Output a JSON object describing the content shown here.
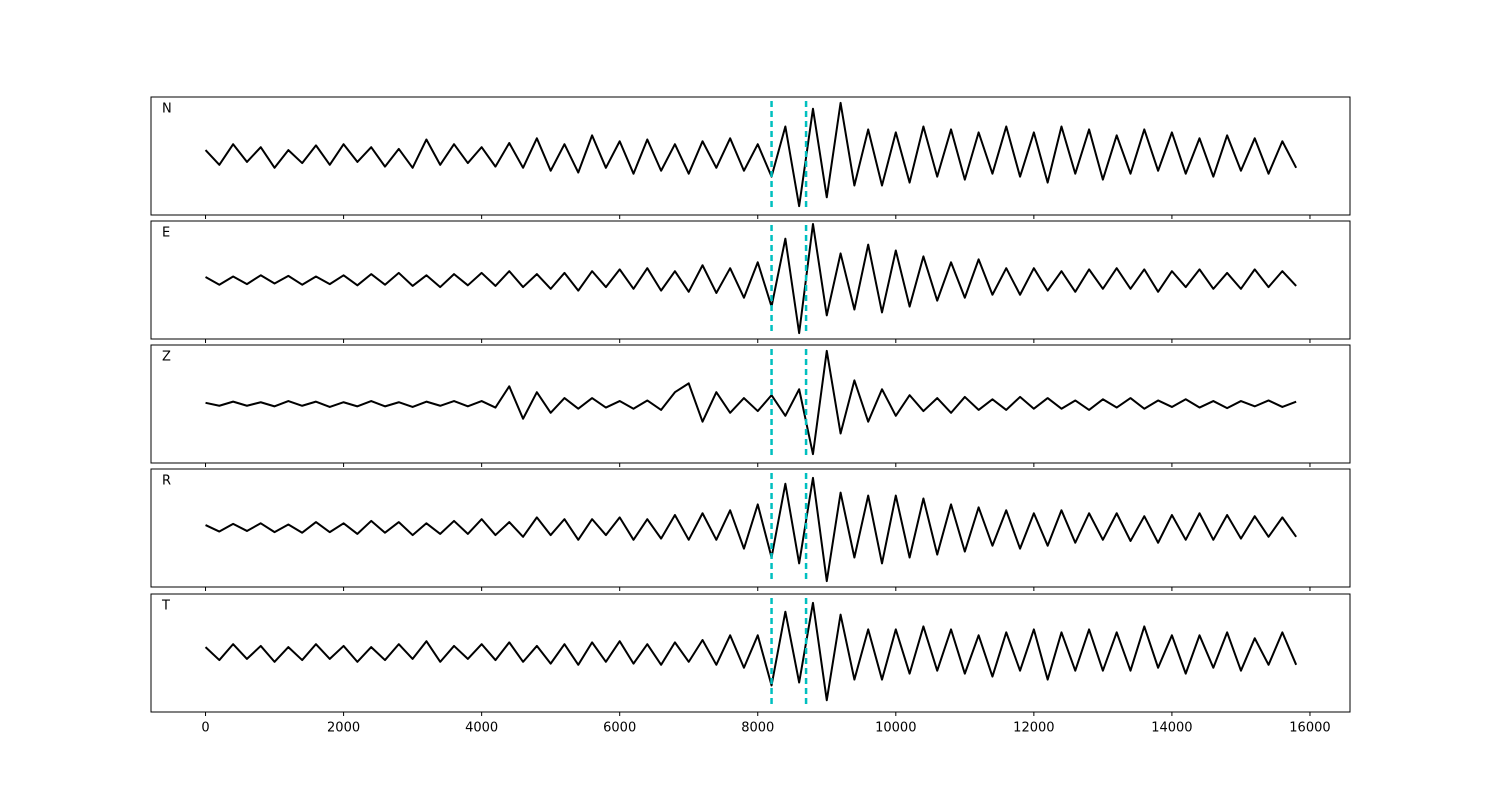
{
  "chart_data": {
    "type": "line",
    "x": [
      0,
      200,
      400,
      600,
      800,
      1000,
      1200,
      1400,
      1600,
      1800,
      2000,
      2200,
      2400,
      2600,
      2800,
      3000,
      3200,
      3400,
      3600,
      3800,
      4000,
      4200,
      4400,
      4600,
      4800,
      5000,
      5200,
      5400,
      5600,
      5800,
      6000,
      6200,
      6400,
      6600,
      6800,
      7000,
      7200,
      7400,
      7600,
      7800,
      8000,
      8200,
      8400,
      8600,
      8800,
      9000,
      9200,
      9400,
      9600,
      9800,
      10000,
      10200,
      10400,
      10600,
      10800,
      11000,
      11200,
      11400,
      11600,
      11800,
      12000,
      12200,
      12400,
      12600,
      12800,
      13000,
      13200,
      13400,
      13600,
      13800,
      14000,
      14200,
      14400,
      14600,
      14800,
      15000,
      15200,
      15400,
      15600,
      15800
    ],
    "series": [
      {
        "name": "N",
        "color": "#000000",
        "values": [
          0.1,
          -0.15,
          0.2,
          -0.1,
          0.15,
          -0.2,
          0.1,
          -0.12,
          0.18,
          -0.15,
          0.2,
          -0.1,
          0.15,
          -0.18,
          0.12,
          -0.2,
          0.28,
          -0.15,
          0.2,
          -0.12,
          0.15,
          -0.18,
          0.22,
          -0.2,
          0.3,
          -0.25,
          0.2,
          -0.28,
          0.35,
          -0.2,
          0.25,
          -0.3,
          0.28,
          -0.25,
          0.2,
          -0.3,
          0.25,
          -0.2,
          0.3,
          -0.25,
          0.2,
          -0.35,
          0.5,
          -0.85,
          0.8,
          -0.7,
          0.9,
          -0.5,
          0.45,
          -0.5,
          0.4,
          -0.45,
          0.5,
          -0.35,
          0.45,
          -0.4,
          0.4,
          -0.3,
          0.5,
          -0.35,
          0.4,
          -0.45,
          0.5,
          -0.3,
          0.45,
          -0.4,
          0.35,
          -0.3,
          0.45,
          -0.25,
          0.4,
          -0.3,
          0.3,
          -0.35,
          0.35,
          -0.25,
          0.3,
          -0.3,
          0.25,
          -0.2
        ]
      },
      {
        "name": "E",
        "color": "#000000",
        "values": [
          0.05,
          -0.08,
          0.06,
          -0.07,
          0.08,
          -0.06,
          0.07,
          -0.08,
          0.06,
          -0.07,
          0.08,
          -0.09,
          0.1,
          -0.08,
          0.12,
          -0.1,
          0.08,
          -0.12,
          0.1,
          -0.09,
          0.12,
          -0.1,
          0.15,
          -0.12,
          0.1,
          -0.15,
          0.12,
          -0.18,
          0.15,
          -0.12,
          0.18,
          -0.15,
          0.2,
          -0.18,
          0.15,
          -0.2,
          0.25,
          -0.22,
          0.2,
          -0.3,
          0.3,
          -0.45,
          0.7,
          -0.9,
          0.95,
          -0.6,
          0.45,
          -0.5,
          0.6,
          -0.55,
          0.5,
          -0.45,
          0.4,
          -0.35,
          0.3,
          -0.3,
          0.35,
          -0.25,
          0.2,
          -0.25,
          0.2,
          -0.18,
          0.15,
          -0.2,
          0.18,
          -0.15,
          0.2,
          -0.15,
          0.18,
          -0.2,
          0.15,
          -0.12,
          0.18,
          -0.15,
          0.12,
          -0.15,
          0.18,
          -0.12,
          0.15,
          -0.1
        ]
      },
      {
        "name": "Z",
        "color": "#000000",
        "values": [
          0.02,
          -0.03,
          0.04,
          -0.03,
          0.03,
          -0.04,
          0.05,
          -0.03,
          0.04,
          -0.05,
          0.03,
          -0.04,
          0.05,
          -0.04,
          0.03,
          -0.05,
          0.04,
          -0.03,
          0.05,
          -0.04,
          0.05,
          -0.06,
          0.3,
          -0.25,
          0.2,
          -0.15,
          0.1,
          -0.08,
          0.1,
          -0.06,
          0.05,
          -0.08,
          0.06,
          -0.1,
          0.2,
          0.35,
          -0.3,
          0.2,
          -0.15,
          0.1,
          -0.12,
          0.15,
          -0.2,
          0.25,
          -0.85,
          0.9,
          -0.5,
          0.4,
          -0.3,
          0.25,
          -0.2,
          0.15,
          -0.12,
          0.1,
          -0.15,
          0.12,
          -0.1,
          0.08,
          -0.1,
          0.12,
          -0.08,
          0.1,
          -0.08,
          0.06,
          -0.1,
          0.08,
          -0.06,
          0.1,
          -0.08,
          0.06,
          -0.05,
          0.08,
          -0.06,
          0.05,
          -0.07,
          0.05,
          -0.04,
          0.06,
          -0.05,
          0.04
        ]
      },
      {
        "name": "R",
        "color": "#000000",
        "values": [
          0.05,
          -0.06,
          0.07,
          -0.05,
          0.08,
          -0.07,
          0.06,
          -0.08,
          0.1,
          -0.07,
          0.08,
          -0.1,
          0.12,
          -0.08,
          0.1,
          -0.12,
          0.08,
          -0.1,
          0.12,
          -0.1,
          0.15,
          -0.12,
          0.1,
          -0.15,
          0.18,
          -0.12,
          0.15,
          -0.2,
          0.15,
          -0.12,
          0.18,
          -0.2,
          0.15,
          -0.18,
          0.22,
          -0.2,
          0.25,
          -0.2,
          0.3,
          -0.35,
          0.4,
          -0.5,
          0.75,
          -0.6,
          0.85,
          -0.9,
          0.6,
          -0.5,
          0.55,
          -0.6,
          0.55,
          -0.5,
          0.5,
          -0.45,
          0.4,
          -0.4,
          0.35,
          -0.3,
          0.3,
          -0.35,
          0.25,
          -0.3,
          0.3,
          -0.25,
          0.25,
          -0.2,
          0.25,
          -0.22,
          0.2,
          -0.25,
          0.22,
          -0.2,
          0.25,
          -0.2,
          0.22,
          -0.18,
          0.2,
          -0.15,
          0.18,
          -0.15
        ]
      },
      {
        "name": "T",
        "color": "#000000",
        "values": [
          0.1,
          -0.12,
          0.15,
          -0.1,
          0.12,
          -0.15,
          0.1,
          -0.12,
          0.15,
          -0.1,
          0.12,
          -0.15,
          0.1,
          -0.12,
          0.15,
          -0.1,
          0.2,
          -0.15,
          0.12,
          -0.1,
          0.15,
          -0.12,
          0.18,
          -0.15,
          0.12,
          -0.18,
          0.15,
          -0.2,
          0.18,
          -0.15,
          0.2,
          -0.18,
          0.15,
          -0.2,
          0.18,
          -0.15,
          0.22,
          -0.2,
          0.3,
          -0.25,
          0.3,
          -0.55,
          0.7,
          -0.5,
          0.85,
          -0.8,
          0.65,
          -0.45,
          0.4,
          -0.45,
          0.4,
          -0.35,
          0.45,
          -0.3,
          0.4,
          -0.35,
          0.3,
          -0.4,
          0.35,
          -0.3,
          0.4,
          -0.45,
          0.35,
          -0.3,
          0.4,
          -0.3,
          0.35,
          -0.3,
          0.45,
          -0.25,
          0.3,
          -0.35,
          0.3,
          -0.25,
          0.35,
          -0.3,
          0.25,
          -0.2,
          0.35,
          -0.2
        ]
      }
    ],
    "xlim": [
      -790,
      16580
    ],
    "xticks": [
      0,
      2000,
      4000,
      6000,
      8000,
      10000,
      12000,
      14000,
      16000
    ],
    "ylim": [
      -1,
      1
    ],
    "vlines": [
      8200,
      8700
    ],
    "vline_color": "#00bfbf"
  }
}
